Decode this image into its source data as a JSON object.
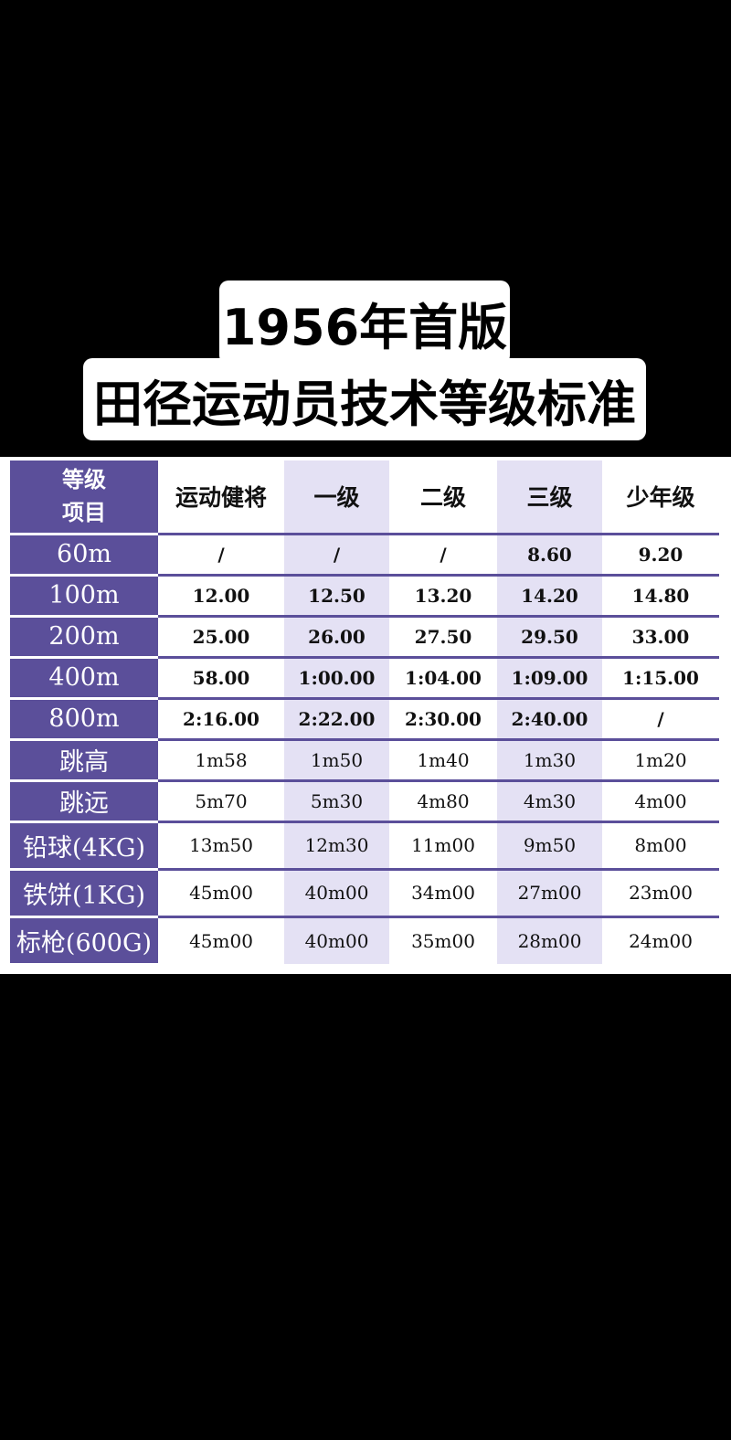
{
  "title": {
    "line1": "1956年首版",
    "line2": "田径运动员技术等级标准"
  },
  "table": {
    "corner": [
      "等级",
      "项目"
    ],
    "levels": [
      "运动健将",
      "一级",
      "二级",
      "三级",
      "少年级"
    ],
    "rows": [
      {
        "event": "60m",
        "values": [
          "/",
          "/",
          "/",
          "8.60",
          "9.20"
        ]
      },
      {
        "event": "100m",
        "values": [
          "12.00",
          "12.50",
          "13.20",
          "14.20",
          "14.80"
        ]
      },
      {
        "event": "200m",
        "values": [
          "25.00",
          "26.00",
          "27.50",
          "29.50",
          "33.00"
        ]
      },
      {
        "event": "400m",
        "values": [
          "58.00",
          "1:00.00",
          "1:04.00",
          "1:09.00",
          "1:15.00"
        ]
      },
      {
        "event": "800m",
        "values": [
          "2:16.00",
          "2:22.00",
          "2:30.00",
          "2:40.00",
          "/"
        ]
      },
      {
        "event": "跳高",
        "values": [
          "1m58",
          "1m50",
          "1m40",
          "1m30",
          "1m20"
        ]
      },
      {
        "event": "跳远",
        "values": [
          "5m70",
          "5m30",
          "4m80",
          "4m30",
          "4m00"
        ]
      },
      {
        "event": "铅球(4KG)",
        "values": [
          "13m50",
          "12m30",
          "11m00",
          "9m50",
          "8m00"
        ]
      },
      {
        "event": "铁饼(1KG)",
        "values": [
          "45m00",
          "40m00",
          "34m00",
          "27m00",
          "23m00"
        ]
      },
      {
        "event": "标枪(600G)",
        "values": [
          "45m00",
          "40m00",
          "35m00",
          "28m00",
          "24m00"
        ]
      }
    ]
  },
  "colors": {
    "label_bg": "#5b4f9a",
    "shade_bg": "#e4e1f4",
    "page_bg": "#000000"
  }
}
